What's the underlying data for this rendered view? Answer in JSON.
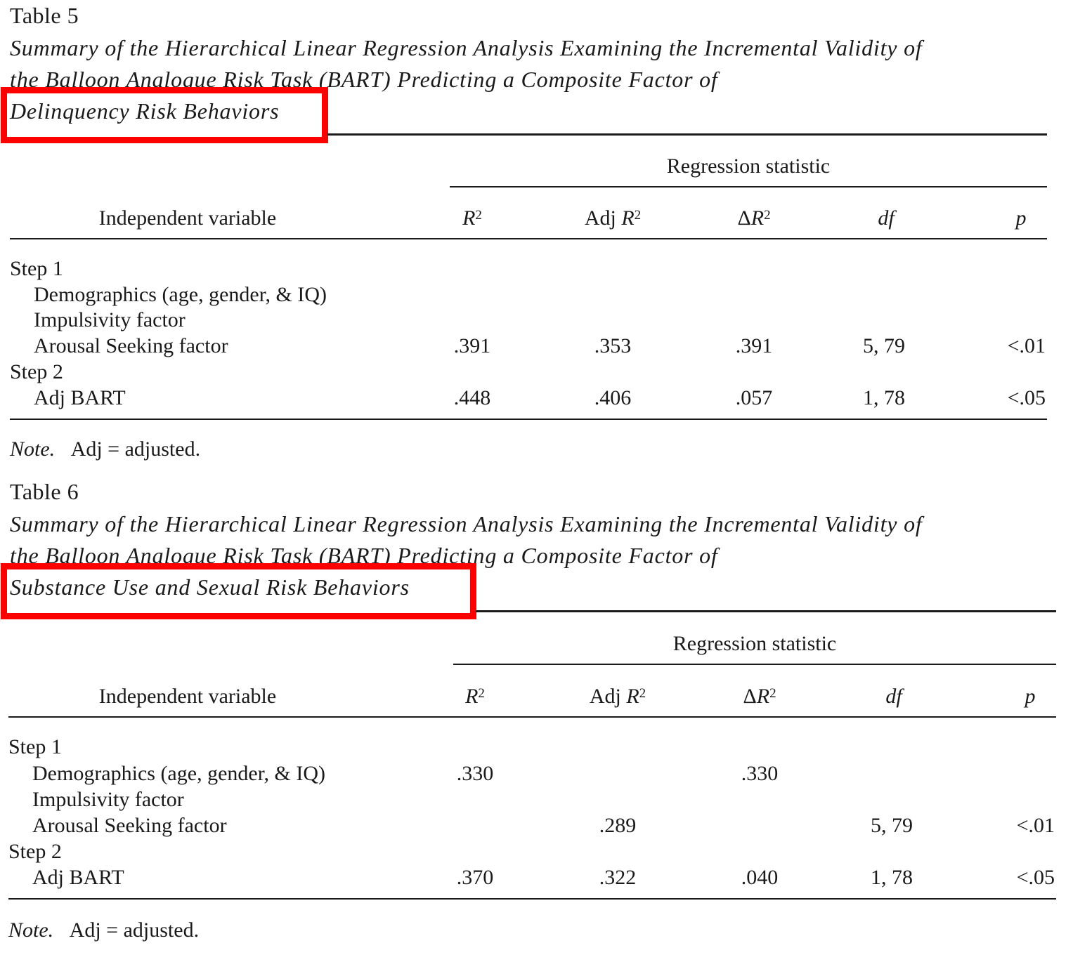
{
  "tables": [
    {
      "label": "Table 5",
      "caption_lines": [
        "Summary of the Hierarchical Linear Regression Analysis Examining the Incremental Validity of",
        "the Balloon Analogue Risk Task (BART) Predicting a Composite Factor of",
        "Delinquency Risk Behaviors"
      ],
      "group_header": "Regression statistic",
      "col_headers": {
        "variable": "Independent variable",
        "r2_sym": "R",
        "r2_sup": "2",
        "adj_prefix": "Adj ",
        "adj_sym": "R",
        "adj_sup": "2",
        "dr_prefix": "Δ",
        "dr_sym": "R",
        "dr_sup": "2",
        "df": "df",
        "p": "p"
      },
      "rows": [
        {
          "label": "Step 1",
          "indent": false,
          "r2": "",
          "adj_r2": "",
          "delta_r2": "",
          "df": "",
          "p": ""
        },
        {
          "label": "Demographics (age, gender, & IQ)",
          "indent": true,
          "r2": "",
          "adj_r2": "",
          "delta_r2": "",
          "df": "",
          "p": ""
        },
        {
          "label": "Impulsivity factor",
          "indent": true,
          "r2": "",
          "adj_r2": "",
          "delta_r2": "",
          "df": "",
          "p": ""
        },
        {
          "label": "Arousal Seeking factor",
          "indent": true,
          "r2": ".391",
          "adj_r2": ".353",
          "delta_r2": ".391",
          "df": "5, 79",
          "p": "<.01"
        },
        {
          "label": "Step 2",
          "indent": false,
          "r2": "",
          "adj_r2": "",
          "delta_r2": "",
          "df": "",
          "p": ""
        },
        {
          "label": "Adj BART",
          "indent": true,
          "r2": ".448",
          "adj_r2": ".406",
          "delta_r2": ".057",
          "df": "1, 78",
          "p": "<.05"
        }
      ],
      "note_label": "Note.",
      "note_text": "Adj = adjusted."
    },
    {
      "label": "Table 6",
      "caption_lines": [
        "Summary of the Hierarchical Linear Regression Analysis Examining the Incremental Validity of",
        "the Balloon Analogue Risk Task (BART) Predicting a Composite Factor of",
        "Substance Use and Sexual Risk Behaviors"
      ],
      "group_header": "Regression statistic",
      "col_headers": {
        "variable": "Independent variable",
        "r2_sym": "R",
        "r2_sup": "2",
        "adj_prefix": "Adj ",
        "adj_sym": "R",
        "adj_sup": "2",
        "dr_prefix": "Δ",
        "dr_sym": "R",
        "dr_sup": "2",
        "df": "df",
        "p": "p"
      },
      "rows": [
        {
          "label": "Step 1",
          "indent": false,
          "r2": "",
          "adj_r2": "",
          "delta_r2": "",
          "df": "",
          "p": ""
        },
        {
          "label": "Demographics (age, gender, & IQ)",
          "indent": true,
          "r2": ".330",
          "adj_r2": "",
          "delta_r2": ".330",
          "df": "",
          "p": ""
        },
        {
          "label": "Impulsivity factor",
          "indent": true,
          "r2": "",
          "adj_r2": "",
          "delta_r2": "",
          "df": "",
          "p": ""
        },
        {
          "label": "Arousal Seeking factor",
          "indent": true,
          "r2": "",
          "adj_r2": ".289",
          "delta_r2": "",
          "df": "5, 79",
          "p": "<.01"
        },
        {
          "label": "Step 2",
          "indent": false,
          "r2": "",
          "adj_r2": "",
          "delta_r2": "",
          "df": "",
          "p": ""
        },
        {
          "label": "Adj BART",
          "indent": true,
          "r2": ".370",
          "adj_r2": ".322",
          "delta_r2": ".040",
          "df": "1, 78",
          "p": "<.05"
        }
      ],
      "note_label": "Note.",
      "note_text": "Adj = adjusted."
    }
  ],
  "highlight_color": "#ff0000"
}
